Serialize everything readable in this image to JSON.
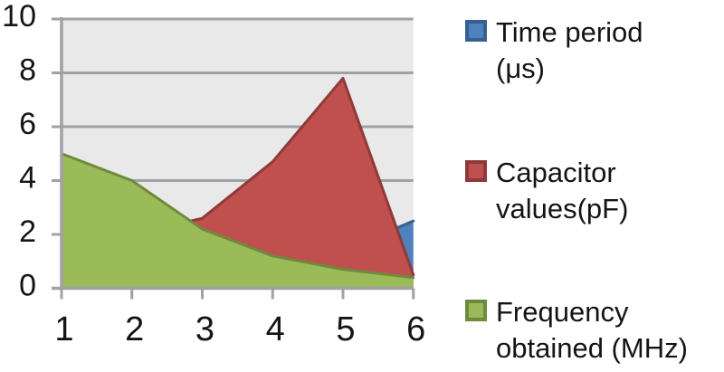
{
  "chart_data": {
    "type": "area",
    "mode": "overlapping",
    "x": [
      1,
      2,
      3,
      4,
      5,
      6
    ],
    "x_tick_labels": [
      "1",
      "2",
      "3",
      "4",
      "5",
      "6"
    ],
    "y_tick_labels": [
      "0",
      "2",
      "4",
      "6",
      "8",
      "10"
    ],
    "ylim": [
      0,
      10
    ],
    "xlim": [
      1,
      6
    ],
    "grid": true,
    "legend_position": "right",
    "title": "",
    "xlabel": "",
    "ylabel": "",
    "series": [
      {
        "name": "Time period (μs)",
        "fill": "#4F81BD",
        "line": "#36608F",
        "values": [
          0.2,
          0.25,
          0.45,
          0.85,
          1.4,
          2.5
        ]
      },
      {
        "name": "Capacitor values(pF)",
        "fill": "#C0504D",
        "line": "#8E3A38",
        "values": [
          1.0,
          2.0,
          2.6,
          4.7,
          7.8,
          0.5
        ]
      },
      {
        "name": "Frequency obtained (MHz)",
        "fill": "#9BBB59",
        "line": "#6E8B3D",
        "values": [
          5.0,
          4.0,
          2.2,
          1.2,
          0.7,
          0.4
        ]
      }
    ]
  },
  "colors": {
    "page_bg": "#FFFFFF",
    "plot_bg": "#E9E9EA",
    "grid": "#A0A1A4",
    "axis": "#A0A1A4",
    "text": "#141414"
  },
  "legend": {
    "items": [
      {
        "id": "time-period",
        "lines": [
          "Time period",
          "(μs)"
        ],
        "swatch_fill": "#4F81BD",
        "swatch_border": "#36608F"
      },
      {
        "id": "capacitor-values",
        "lines": [
          "Capacitor",
          "values(pF)"
        ],
        "swatch_fill": "#C0504D",
        "swatch_border": "#8E3A38"
      },
      {
        "id": "frequency-obtained",
        "lines": [
          "Frequency",
          "obtained (MHz)"
        ],
        "swatch_fill": "#9BBB59",
        "swatch_border": "#6E8B3D"
      }
    ]
  }
}
